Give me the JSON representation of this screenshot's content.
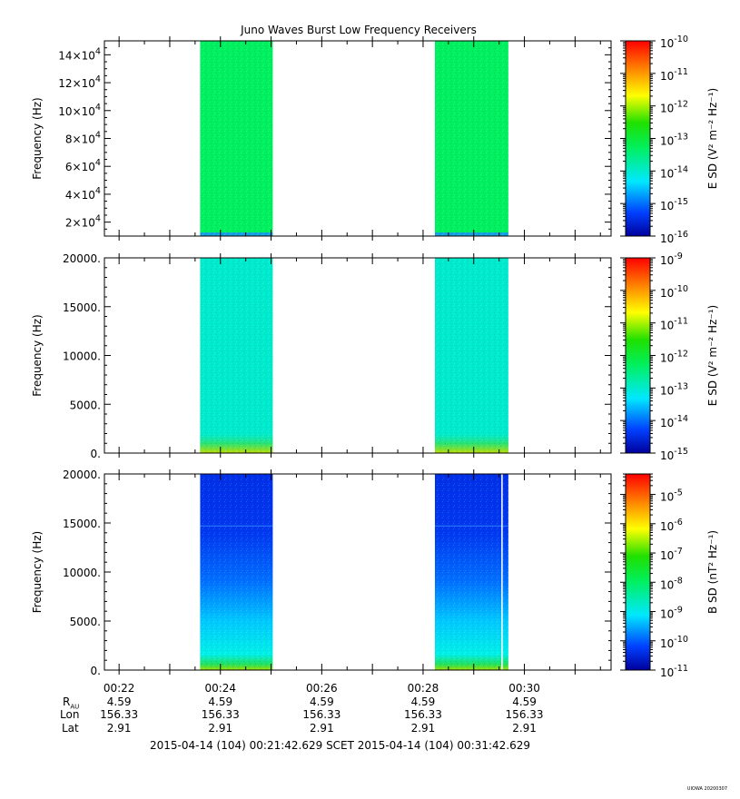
{
  "title": "Juno Waves Burst Low Frequency Receivers",
  "x_tick_labels": [
    "00:22",
    "00:24",
    "00:26",
    "00:28",
    "00:30"
  ],
  "chart_data": [
    {
      "type": "heatmap",
      "ylabel": "Frequency (Hz)",
      "colorbar_label": "E SD (V² m⁻² Hz⁻¹)",
      "y_log_colors": true,
      "ylim": [
        10000,
        150000
      ],
      "y_ticks": [
        20000,
        40000,
        60000,
        80000,
        100000,
        120000,
        140000
      ],
      "y_tick_labels": [
        {
          "m": "2×10",
          "e": "4"
        },
        {
          "m": "4×10",
          "e": "4"
        },
        {
          "m": "6×10",
          "e": "4"
        },
        {
          "m": "8×10",
          "e": "4"
        },
        {
          "m": "10×10",
          "e": "4"
        },
        {
          "m": "12×10",
          "e": "4"
        },
        {
          "m": "14×10",
          "e": "4"
        }
      ],
      "colorbar_range_exp": [
        -16,
        -10
      ],
      "colorbar_ticks": [
        {
          "m": "10",
          "e": "-10"
        },
        {
          "m": "10",
          "e": "-11"
        },
        {
          "m": "10",
          "e": "-12"
        },
        {
          "m": "10",
          "e": "-13"
        },
        {
          "m": "10",
          "e": "-14"
        },
        {
          "m": "10",
          "e": "-15"
        },
        {
          "m": "10",
          "e": "-16"
        }
      ],
      "bursts": [
        {
          "start": "00:23:36",
          "end": "00:25:02",
          "level_exp": -13.3
        },
        {
          "start": "00:28:14",
          "end": "00:29:41",
          "level_exp": -13.3
        }
      ]
    },
    {
      "type": "heatmap",
      "ylabel": "Frequency (Hz)",
      "colorbar_label": "E SD (V² m⁻² Hz⁻¹)",
      "ylim": [
        0,
        20000
      ],
      "y_ticks": [
        0,
        5000,
        10000,
        15000,
        20000
      ],
      "y_tick_labels": [
        {
          "m": "0.",
          "e": ""
        },
        {
          "m": "5000.",
          "e": ""
        },
        {
          "m": "10000.",
          "e": ""
        },
        {
          "m": "15000.",
          "e": ""
        },
        {
          "m": "20000.",
          "e": ""
        }
      ],
      "colorbar_range_exp": [
        -15,
        -9
      ],
      "colorbar_ticks": [
        {
          "m": "10",
          "e": "-9"
        },
        {
          "m": "10",
          "e": "-10"
        },
        {
          "m": "10",
          "e": "-11"
        },
        {
          "m": "10",
          "e": "-12"
        },
        {
          "m": "10",
          "e": "-13"
        },
        {
          "m": "10",
          "e": "-14"
        },
        {
          "m": "10",
          "e": "-15"
        }
      ],
      "bursts": [
        {
          "start": "00:23:36",
          "end": "00:25:02",
          "level_exp": -13.0
        },
        {
          "start": "00:28:14",
          "end": "00:29:41",
          "level_exp": -13.0
        }
      ]
    },
    {
      "type": "heatmap",
      "ylabel": "Frequency (Hz)",
      "colorbar_label": "B SD (nT² Hz⁻¹)",
      "ylim": [
        0,
        20000
      ],
      "y_ticks": [
        0,
        5000,
        10000,
        15000,
        20000
      ],
      "y_tick_labels": [
        {
          "m": "0.",
          "e": ""
        },
        {
          "m": "5000.",
          "e": ""
        },
        {
          "m": "10000.",
          "e": ""
        },
        {
          "m": "15000.",
          "e": ""
        },
        {
          "m": "20000.",
          "e": ""
        }
      ],
      "colorbar_range_exp": [
        -11,
        -4.3
      ],
      "colorbar_ticks": [
        {
          "m": "10",
          "e": "-5"
        },
        {
          "m": "10",
          "e": "-6"
        },
        {
          "m": "10",
          "e": "-7"
        },
        {
          "m": "10",
          "e": "-8"
        },
        {
          "m": "10",
          "e": "-9"
        },
        {
          "m": "10",
          "e": "-10"
        },
        {
          "m": "10",
          "e": "-11"
        }
      ],
      "bursts": [
        {
          "start": "00:23:36",
          "end": "00:25:02",
          "level_exp": -10.2
        },
        {
          "start": "00:28:14",
          "end": "00:29:41",
          "level_exp": -10.2
        }
      ]
    }
  ],
  "ephemeris": {
    "labels": [
      "R",
      "Lon",
      "Lat"
    ],
    "r_subscript": "AU",
    "columns": [
      {
        "time": "00:22",
        "r": "4.59",
        "lon": "156.33",
        "lat": "2.91"
      },
      {
        "time": "00:24",
        "r": "4.59",
        "lon": "156.33",
        "lat": "2.91"
      },
      {
        "time": "00:26",
        "r": "4.59",
        "lon": "156.33",
        "lat": "2.91"
      },
      {
        "time": "00:28",
        "r": "4.59",
        "lon": "156.33",
        "lat": "2.91"
      },
      {
        "time": "00:30",
        "r": "4.59",
        "lon": "156.33",
        "lat": "2.91"
      }
    ]
  },
  "time_range_text": "2015-04-14 (104) 00:21:42.629     SCET     2015-04-14 (104) 00:31:42.629",
  "stamp": "UIOWA 20200307"
}
